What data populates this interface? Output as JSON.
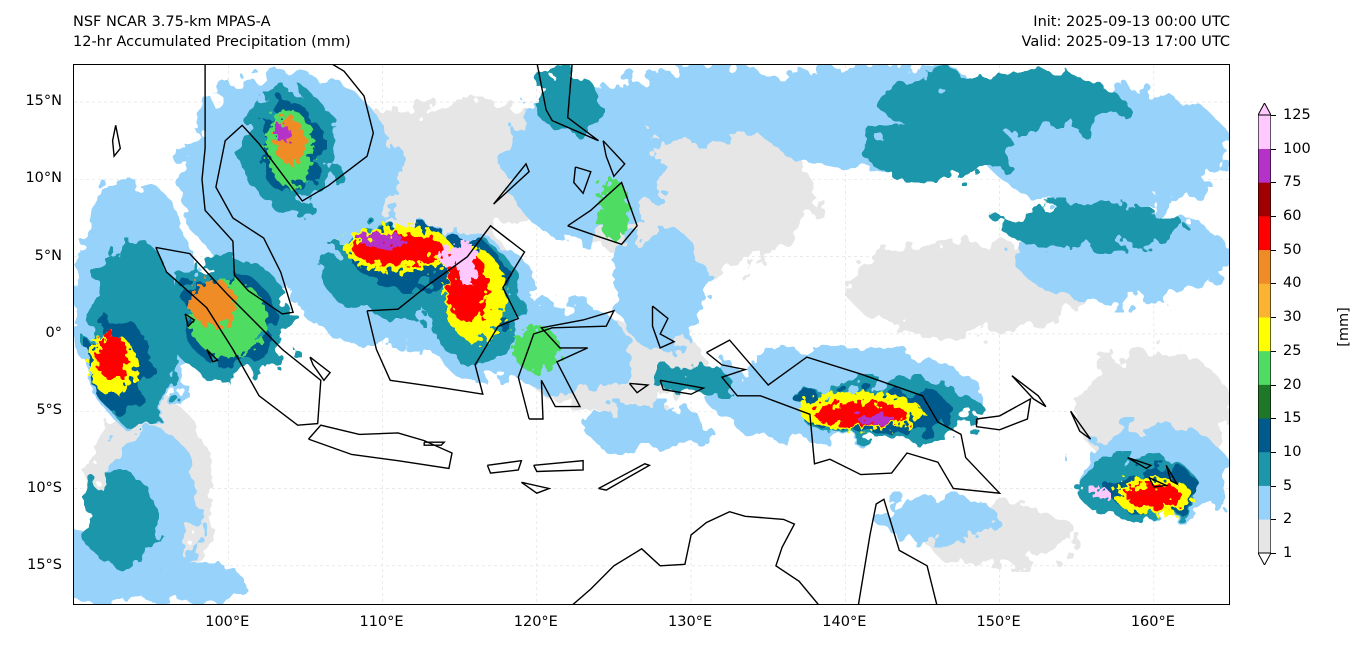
{
  "title": {
    "model": "NSF NCAR 3.75-km MPAS-A",
    "field": "12-hr Accumulated Precipitation (mm)",
    "init": "Init: 2025-09-13 00:00 UTC",
    "valid": "Valid: 2025-09-13 17:00 UTC"
  },
  "map": {
    "lon_range": [
      90,
      165
    ],
    "lat_range": [
      -17.6,
      17.4
    ],
    "x_ticks": [
      {
        "v": 100,
        "label": "100°E"
      },
      {
        "v": 110,
        "label": "110°E"
      },
      {
        "v": 120,
        "label": "120°E"
      },
      {
        "v": 130,
        "label": "130°E"
      },
      {
        "v": 140,
        "label": "140°E"
      },
      {
        "v": 150,
        "label": "150°E"
      },
      {
        "v": 160,
        "label": "160°E"
      }
    ],
    "y_ticks": [
      {
        "v": 15,
        "label": "15°N"
      },
      {
        "v": 10,
        "label": "10°N"
      },
      {
        "v": 5,
        "label": "5°N"
      },
      {
        "v": 0,
        "label": "0°"
      },
      {
        "v": -5,
        "label": "5°S"
      },
      {
        "v": -10,
        "label": "10°S"
      },
      {
        "v": -15,
        "label": "15°S"
      }
    ]
  },
  "colorbar": {
    "unit": "[mm]",
    "levels": [
      "1",
      "2",
      "5",
      "10",
      "15",
      "20",
      "25",
      "30",
      "40",
      "50",
      "60",
      "75",
      "100",
      "125"
    ],
    "colors": [
      "#e6e6e6",
      "#96d2fa",
      "#1e96aa",
      "#005a8c",
      "#1e7828",
      "#50dc64",
      "#ffff00",
      "#fab432",
      "#f08c28",
      "#ff0000",
      "#a00000",
      "#b432c8",
      "#ffc8ff"
    ]
  }
}
